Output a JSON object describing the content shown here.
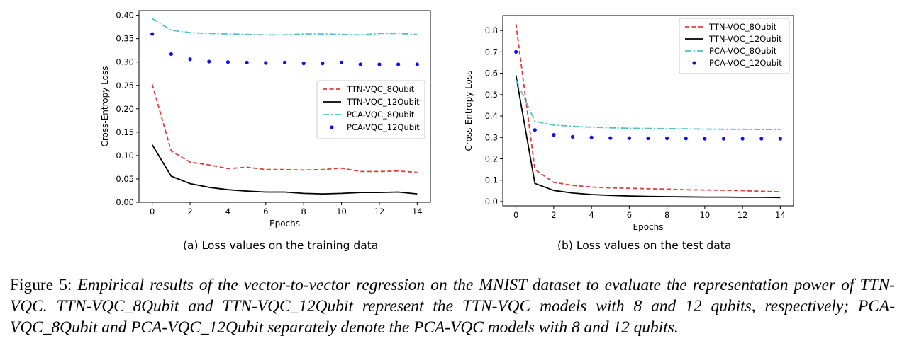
{
  "figure": {
    "label": "Figure 5:",
    "text": "Empirical results of the vector-to-vector regression on the MNIST dataset to evaluate the representation power of TTN-VQC. TTN-VQC_8Qubit and TTN-VQC_12Qubit represent the TTN-VQC models with 8 and 12 qubits, respectively; PCA-VQC_8Qubit and PCA-VQC_12Qubit separately denote the PCA-VQC models with 8 and 12 qubits."
  },
  "colors": {
    "ttn8": "#e03c3c",
    "ttn12": "#000000",
    "pca8": "#4ec2c6",
    "pca12": "#1010ee"
  },
  "chart_data": [
    {
      "type": "line",
      "caption": "(a) Loss values on the training data",
      "xlabel": "Epochs",
      "ylabel": "Cross-Entropy Loss",
      "xlim": [
        -0.7,
        14.7
      ],
      "ylim": [
        0,
        0.41
      ],
      "xticks": [
        0,
        2,
        4,
        6,
        8,
        10,
        12,
        14
      ],
      "yticks": [
        0.0,
        0.05,
        0.1,
        0.15,
        0.2,
        0.25,
        0.3,
        0.35,
        0.4
      ],
      "ytick_labels": [
        "0.00",
        "0.05",
        "0.10",
        "0.15",
        "0.20",
        "0.25",
        "0.30",
        "0.35",
        "0.40"
      ],
      "legend_position": "center-right",
      "x": [
        0,
        1,
        2,
        3,
        4,
        5,
        6,
        7,
        8,
        9,
        10,
        11,
        12,
        13,
        14
      ],
      "series": [
        {
          "name": "TTN-VQC_8Qubit",
          "style": "dashed",
          "color": "#e03c3c",
          "values": [
            0.252,
            0.11,
            0.086,
            0.08,
            0.072,
            0.075,
            0.07,
            0.07,
            0.069,
            0.07,
            0.073,
            0.066,
            0.066,
            0.067,
            0.064
          ]
        },
        {
          "name": "TTN-VQC_12Qubit",
          "style": "solid",
          "color": "#000000",
          "values": [
            0.123,
            0.056,
            0.04,
            0.032,
            0.027,
            0.024,
            0.022,
            0.022,
            0.019,
            0.018,
            0.019,
            0.021,
            0.021,
            0.022,
            0.018
          ]
        },
        {
          "name": "PCA-VQC_8Qubit",
          "style": "dashdot",
          "color": "#4ec2c6",
          "values": [
            0.393,
            0.368,
            0.363,
            0.361,
            0.36,
            0.359,
            0.358,
            0.358,
            0.36,
            0.36,
            0.359,
            0.358,
            0.361,
            0.361,
            0.359
          ]
        },
        {
          "name": "PCA-VQC_12Qubit",
          "style": "dots",
          "color": "#1010ee",
          "values": [
            0.36,
            0.317,
            0.306,
            0.301,
            0.3,
            0.299,
            0.298,
            0.299,
            0.297,
            0.297,
            0.299,
            0.295,
            0.295,
            0.295,
            0.295
          ]
        }
      ]
    },
    {
      "type": "line",
      "caption": "(b) Loss values on the test data",
      "xlabel": "Epochs",
      "ylabel": "Cross-Entropy Loss",
      "xlim": [
        -0.7,
        14.7
      ],
      "ylim": [
        -0.02,
        0.87
      ],
      "xticks": [
        0,
        2,
        4,
        6,
        8,
        10,
        12,
        14
      ],
      "yticks": [
        0.0,
        0.1,
        0.2,
        0.3,
        0.4,
        0.5,
        0.6,
        0.7,
        0.8
      ],
      "ytick_labels": [
        "0.0",
        "0.1",
        "0.2",
        "0.3",
        "0.4",
        "0.5",
        "0.6",
        "0.7",
        "0.8"
      ],
      "legend_position": "top-right",
      "x": [
        0,
        1,
        2,
        3,
        4,
        5,
        6,
        7,
        8,
        9,
        10,
        11,
        12,
        13,
        14
      ],
      "series": [
        {
          "name": "TTN-VQC_8Qubit",
          "style": "dashed",
          "color": "#e03c3c",
          "values": [
            0.83,
            0.15,
            0.09,
            0.076,
            0.068,
            0.064,
            0.062,
            0.06,
            0.058,
            0.055,
            0.054,
            0.053,
            0.051,
            0.048,
            0.046
          ]
        },
        {
          "name": "TTN-VQC_12Qubit",
          "style": "solid",
          "color": "#000000",
          "values": [
            0.59,
            0.085,
            0.052,
            0.04,
            0.033,
            0.029,
            0.026,
            0.024,
            0.023,
            0.022,
            0.021,
            0.021,
            0.02,
            0.02,
            0.019
          ]
        },
        {
          "name": "PCA-VQC_8Qubit",
          "style": "dashdot",
          "color": "#4ec2c6",
          "values": [
            0.57,
            0.375,
            0.358,
            0.352,
            0.348,
            0.345,
            0.343,
            0.342,
            0.341,
            0.34,
            0.339,
            0.338,
            0.338,
            0.337,
            0.337
          ]
        },
        {
          "name": "PCA-VQC_12Qubit",
          "style": "dots",
          "color": "#1010ee",
          "values": [
            0.7,
            0.335,
            0.312,
            0.303,
            0.3,
            0.297,
            0.297,
            0.296,
            0.296,
            0.295,
            0.294,
            0.294,
            0.294,
            0.294,
            0.294
          ]
        }
      ]
    }
  ]
}
